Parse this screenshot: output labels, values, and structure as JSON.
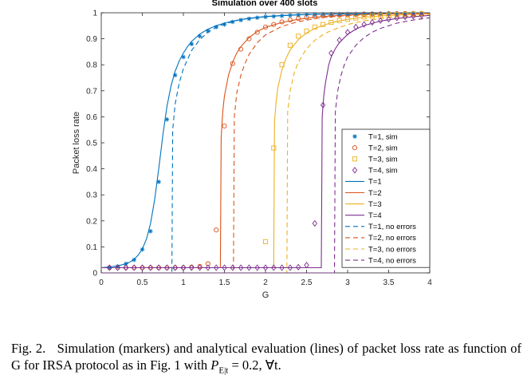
{
  "chart_data": {
    "type": "line",
    "title": "Simulation over 400 slots",
    "xlabel": "G",
    "ylabel": "Packet loss rate",
    "xlim": [
      0,
      4
    ],
    "ylim": [
      0,
      1
    ],
    "xticks": [
      0,
      0.5,
      1,
      1.5,
      2,
      2.5,
      3,
      3.5,
      4
    ],
    "xtick_labels": [
      "0",
      "0.5",
      "1",
      "1.5",
      "2",
      "2.5",
      "3",
      "3.5",
      "4"
    ],
    "yticks": [
      0,
      0.1,
      0.2,
      0.3,
      0.4,
      0.5,
      0.6,
      0.7,
      0.8,
      0.9,
      1
    ],
    "ytick_labels": [
      "0",
      "0.1",
      "0.2",
      "0.3",
      "0.4",
      "0.5",
      "0.6",
      "0.7",
      "0.8",
      "0.9",
      "1"
    ],
    "grid": false,
    "legend_position": "right-center",
    "colors": {
      "T1": "#0072BD",
      "T2": "#D95319",
      "T3": "#EDB120",
      "T4": "#7E2F8E"
    },
    "sim_series": [
      {
        "name": "T=1, sim",
        "marker": "asterisk",
        "color": "#0072BD",
        "x": [
          0.1,
          0.2,
          0.3,
          0.4,
          0.5,
          0.6,
          0.7,
          0.8,
          0.9,
          1.0,
          1.1,
          1.2,
          1.3,
          1.4,
          1.5,
          1.6,
          1.7,
          1.8,
          1.9,
          2.0,
          2.1,
          2.2,
          2.3,
          2.4,
          2.5,
          2.6,
          2.7,
          2.8,
          2.9,
          3.0,
          3.1,
          3.2,
          3.3,
          3.4,
          3.5,
          3.6,
          3.7,
          3.8,
          3.9
        ],
        "y": [
          0.02,
          0.025,
          0.035,
          0.05,
          0.09,
          0.16,
          0.35,
          0.59,
          0.76,
          0.83,
          0.88,
          0.91,
          0.93,
          0.945,
          0.955,
          0.965,
          0.972,
          0.977,
          0.981,
          0.984,
          0.986,
          0.988,
          0.99,
          0.991,
          0.992,
          0.993,
          0.994,
          0.995,
          0.995,
          0.996,
          0.996,
          0.997,
          0.997,
          0.997,
          0.998,
          0.998,
          0.998,
          0.998,
          0.998
        ]
      },
      {
        "name": "T=2, sim",
        "marker": "circle",
        "color": "#D95319",
        "x": [
          0.1,
          0.2,
          0.3,
          0.4,
          0.5,
          0.6,
          0.7,
          0.8,
          0.9,
          1.0,
          1.1,
          1.2,
          1.3,
          1.4,
          1.5,
          1.6,
          1.7,
          1.8,
          1.9,
          2.0,
          2.1,
          2.2,
          2.3,
          2.4,
          2.5,
          2.6,
          2.7,
          2.8,
          2.9,
          3.0,
          3.1,
          3.2,
          3.3,
          3.4,
          3.5,
          3.6,
          3.7,
          3.8,
          3.9
        ],
        "y": [
          0.02,
          0.02,
          0.02,
          0.02,
          0.02,
          0.02,
          0.02,
          0.02,
          0.02,
          0.02,
          0.022,
          0.025,
          0.035,
          0.165,
          0.565,
          0.805,
          0.86,
          0.9,
          0.925,
          0.945,
          0.955,
          0.965,
          0.972,
          0.978,
          0.982,
          0.985,
          0.988,
          0.99,
          0.991,
          0.992,
          0.993,
          0.994,
          0.995,
          0.995,
          0.996,
          0.996,
          0.997,
          0.997,
          0.997
        ]
      },
      {
        "name": "T=3, sim",
        "marker": "square",
        "color": "#EDB120",
        "x": [
          2.0,
          2.1,
          2.2,
          2.3,
          2.4,
          2.5,
          2.6,
          2.7,
          2.8,
          2.9,
          3.0,
          3.1,
          3.2,
          3.3,
          3.4,
          3.5,
          3.6,
          3.7,
          3.8,
          3.9
        ],
        "y": [
          0.12,
          0.48,
          0.8,
          0.875,
          0.91,
          0.93,
          0.945,
          0.955,
          0.963,
          0.97,
          0.975,
          0.98,
          0.984,
          0.987,
          0.989,
          0.991,
          0.993,
          0.994,
          0.995,
          0.996
        ]
      },
      {
        "name": "T=4, sim",
        "marker": "diamond",
        "color": "#7E2F8E",
        "x": [
          0.1,
          0.2,
          0.3,
          0.4,
          0.5,
          0.6,
          0.7,
          0.8,
          0.9,
          1.0,
          1.1,
          1.2,
          1.3,
          1.4,
          1.5,
          1.6,
          1.7,
          1.8,
          1.9,
          2.0,
          2.1,
          2.2,
          2.3,
          2.4,
          2.5,
          2.6,
          2.7,
          2.8,
          2.9,
          3.0,
          3.1,
          3.2,
          3.3,
          3.4,
          3.5,
          3.6,
          3.7,
          3.8,
          3.9
        ],
        "y": [
          0.02,
          0.02,
          0.02,
          0.02,
          0.02,
          0.02,
          0.02,
          0.02,
          0.02,
          0.02,
          0.02,
          0.02,
          0.02,
          0.02,
          0.02,
          0.02,
          0.02,
          0.02,
          0.02,
          0.02,
          0.02,
          0.02,
          0.02,
          0.022,
          0.03,
          0.19,
          0.645,
          0.845,
          0.895,
          0.925,
          0.945,
          0.955,
          0.963,
          0.97,
          0.975,
          0.98,
          0.984,
          0.987,
          0.99
        ]
      }
    ],
    "analytic_series": [
      {
        "name": "T=1",
        "style": "solid",
        "color": "#0072BD",
        "x": [
          0,
          0.1,
          0.2,
          0.3,
          0.35,
          0.4,
          0.45,
          0.5,
          0.55,
          0.6,
          0.65,
          0.7,
          0.75,
          0.8,
          0.85,
          0.9,
          0.95,
          1.0,
          1.05,
          1.1,
          1.2,
          1.3,
          1.4,
          1.5,
          1.6,
          1.7,
          1.8,
          2.0,
          2.2,
          2.4,
          2.6,
          2.8,
          3.0,
          3.5,
          4.0
        ],
        "y": [
          0.02,
          0.023,
          0.027,
          0.035,
          0.042,
          0.052,
          0.068,
          0.092,
          0.13,
          0.19,
          0.28,
          0.4,
          0.53,
          0.64,
          0.72,
          0.775,
          0.815,
          0.845,
          0.87,
          0.89,
          0.918,
          0.937,
          0.95,
          0.96,
          0.968,
          0.974,
          0.979,
          0.985,
          0.989,
          0.992,
          0.994,
          0.995,
          0.996,
          0.998,
          0.999
        ]
      },
      {
        "name": "T=2",
        "style": "solid",
        "color": "#D95319",
        "x": [
          0,
          1.45,
          1.46,
          1.48,
          1.5,
          1.55,
          1.6,
          1.65,
          1.7,
          1.8,
          1.9,
          2.0,
          2.2,
          2.4,
          2.6,
          2.8,
          3.0,
          3.5,
          4.0
        ],
        "y": [
          0.02,
          0.02,
          0.52,
          0.62,
          0.68,
          0.76,
          0.81,
          0.845,
          0.87,
          0.905,
          0.928,
          0.944,
          0.963,
          0.975,
          0.983,
          0.988,
          0.991,
          0.996,
          0.998
        ]
      },
      {
        "name": "T=3",
        "style": "solid",
        "color": "#EDB120",
        "x": [
          0,
          2.1,
          2.11,
          2.13,
          2.15,
          2.2,
          2.25,
          2.3,
          2.4,
          2.5,
          2.6,
          2.8,
          3.0,
          3.2,
          3.5,
          4.0
        ],
        "y": [
          0.02,
          0.02,
          0.58,
          0.66,
          0.71,
          0.78,
          0.825,
          0.857,
          0.897,
          0.922,
          0.94,
          0.962,
          0.975,
          0.983,
          0.99,
          0.996
        ]
      },
      {
        "name": "T=4",
        "style": "solid",
        "color": "#7E2F8E",
        "x": [
          0,
          2.68,
          2.69,
          2.71,
          2.73,
          2.77,
          2.8,
          2.85,
          2.9,
          3.0,
          3.1,
          3.2,
          3.4,
          3.6,
          3.8,
          4.0
        ],
        "y": [
          0.02,
          0.02,
          0.6,
          0.68,
          0.73,
          0.8,
          0.83,
          0.862,
          0.885,
          0.917,
          0.937,
          0.951,
          0.968,
          0.978,
          0.985,
          0.99
        ]
      },
      {
        "name": "T=1, no errors",
        "style": "dashed",
        "color": "#0072BD",
        "x": [
          0,
          0.86,
          0.87,
          0.9,
          0.95,
          1.0,
          1.1,
          1.2,
          1.3,
          1.4,
          1.5,
          1.7,
          2.0,
          2.5,
          3.0,
          3.5,
          4.0
        ],
        "y": [
          0.0,
          0.0,
          0.55,
          0.65,
          0.73,
          0.785,
          0.855,
          0.897,
          0.925,
          0.944,
          0.957,
          0.974,
          0.986,
          0.994,
          0.997,
          0.998,
          0.999
        ]
      },
      {
        "name": "T=2, no errors",
        "style": "dashed",
        "color": "#D95319",
        "x": [
          0,
          1.61,
          1.62,
          1.65,
          1.7,
          1.75,
          1.8,
          1.9,
          2.0,
          2.2,
          2.4,
          2.6,
          2.8,
          3.0,
          3.5,
          4.0
        ],
        "y": [
          0.0,
          0.0,
          0.6,
          0.69,
          0.76,
          0.805,
          0.84,
          0.885,
          0.915,
          0.948,
          0.966,
          0.977,
          0.985,
          0.989,
          0.995,
          0.998
        ]
      },
      {
        "name": "T=3, no errors",
        "style": "dashed",
        "color": "#EDB120",
        "x": [
          0,
          2.26,
          2.27,
          2.3,
          2.35,
          2.4,
          2.5,
          2.6,
          2.7,
          2.8,
          3.0,
          3.2,
          3.5,
          4.0
        ],
        "y": [
          0.0,
          0.0,
          0.62,
          0.7,
          0.77,
          0.81,
          0.862,
          0.894,
          0.916,
          0.932,
          0.955,
          0.969,
          0.982,
          0.993
        ]
      },
      {
        "name": "T=4, no errors",
        "style": "dashed",
        "color": "#7E2F8E",
        "x": [
          0,
          2.84,
          2.85,
          2.88,
          2.92,
          2.96,
          3.0,
          3.1,
          3.2,
          3.3,
          3.4,
          3.6,
          3.8,
          4.0
        ],
        "y": [
          0.0,
          0.0,
          0.62,
          0.7,
          0.76,
          0.8,
          0.83,
          0.875,
          0.905,
          0.925,
          0.94,
          0.96,
          0.972,
          0.981
        ]
      }
    ],
    "legend": [
      {
        "label": "T=1, sim",
        "kind": "marker",
        "marker": "asterisk",
        "color": "#0072BD"
      },
      {
        "label": "T=2, sim",
        "kind": "marker",
        "marker": "circle",
        "color": "#D95319"
      },
      {
        "label": "T=3, sim",
        "kind": "marker",
        "marker": "square",
        "color": "#EDB120"
      },
      {
        "label": "T=4, sim",
        "kind": "marker",
        "marker": "diamond",
        "color": "#7E2F8E"
      },
      {
        "label": "T=1",
        "kind": "line",
        "style": "solid",
        "color": "#0072BD"
      },
      {
        "label": "T=2",
        "kind": "line",
        "style": "solid",
        "color": "#D95319"
      },
      {
        "label": "T=3",
        "kind": "line",
        "style": "solid",
        "color": "#EDB120"
      },
      {
        "label": "T=4",
        "kind": "line",
        "style": "solid",
        "color": "#7E2F8E"
      },
      {
        "label": "T=1, no errors",
        "kind": "line",
        "style": "dashed",
        "color": "#0072BD"
      },
      {
        "label": "T=2, no errors",
        "kind": "line",
        "style": "dashed",
        "color": "#D95319"
      },
      {
        "label": "T=3, no errors",
        "kind": "line",
        "style": "dashed",
        "color": "#EDB120"
      },
      {
        "label": "T=4, no errors",
        "kind": "line",
        "style": "dashed",
        "color": "#7E2F8E"
      }
    ]
  },
  "caption": {
    "prefix": "Fig. 2.",
    "text": "Simulation (markers) and analytical evaluation (lines) of packet loss rate as function of G for IRSA protocol as in Fig. 1 with",
    "math_symbol": "P",
    "math_subscript": "E|t",
    "math_rest": " = 0.2, ∀t."
  }
}
